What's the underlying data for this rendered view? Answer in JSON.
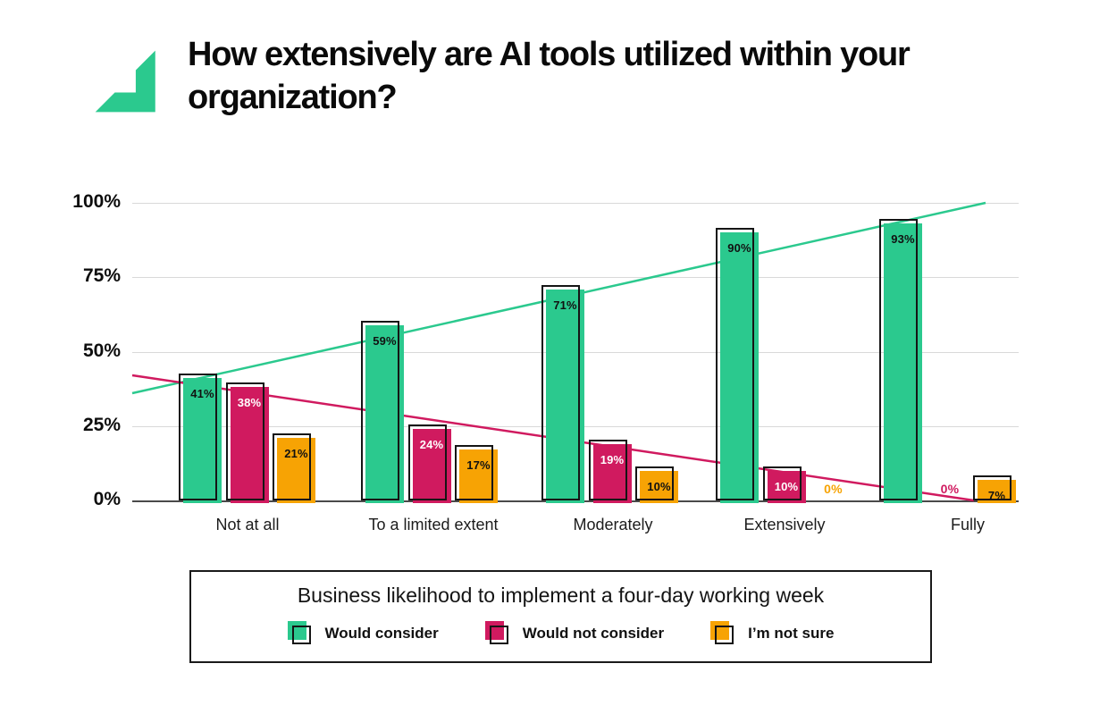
{
  "header": {
    "title": "How extensively are AI tools utilized within your organization?"
  },
  "icons": {
    "brand_corner_icon": "green-corner-arrow",
    "brand_color": "#2BC98E"
  },
  "colors": {
    "green": "#2BC98E",
    "crimson": "#D01A5F",
    "orange": "#F7A304",
    "gridline": "#d9d9d9",
    "axis_line": "#4a4a4a",
    "text": "#111111"
  },
  "chart_data": {
    "type": "bar",
    "title": "How extensively are AI tools utilized within your organization?",
    "categories": [
      "Not at all",
      "To a limited extent",
      "Moderately",
      "Extensively",
      "Fully"
    ],
    "series": [
      {
        "name": "Would consider",
        "color": "#2BC98E",
        "label_text_color": "#111111",
        "values": [
          41,
          59,
          71,
          90,
          93
        ]
      },
      {
        "name": "Would not consider",
        "color": "#D01A5F",
        "label_text_color": "#ffffff",
        "values": [
          38,
          24,
          19,
          10,
          0
        ]
      },
      {
        "name": "I’m not sure",
        "color": "#F7A304",
        "label_text_color": "#111111",
        "values": [
          21,
          17,
          10,
          0,
          7
        ]
      }
    ],
    "value_suffix": "%",
    "y_ticks": [
      {
        "label": "100%",
        "value": 100
      },
      {
        "label": "75%",
        "value": 75
      },
      {
        "label": "50%",
        "value": 50
      },
      {
        "label": "25%",
        "value": 25
      },
      {
        "label": "0%",
        "value": 0
      }
    ],
    "ylim": [
      0,
      100
    ],
    "grid": "horizontal",
    "legend_position": "bottom",
    "trendlines": [
      {
        "name": "would-consider-trend",
        "color": "#2BC98E",
        "start_value": 36,
        "end_value": 100
      },
      {
        "name": "would-not-consider-trend",
        "color": "#D01A5F",
        "start_value": 42,
        "end_value": 0
      }
    ],
    "legend": {
      "title": "Business likelihood to implement a four-day working week",
      "entries": [
        "Would consider",
        "Would not consider",
        "I’m not sure"
      ]
    }
  }
}
